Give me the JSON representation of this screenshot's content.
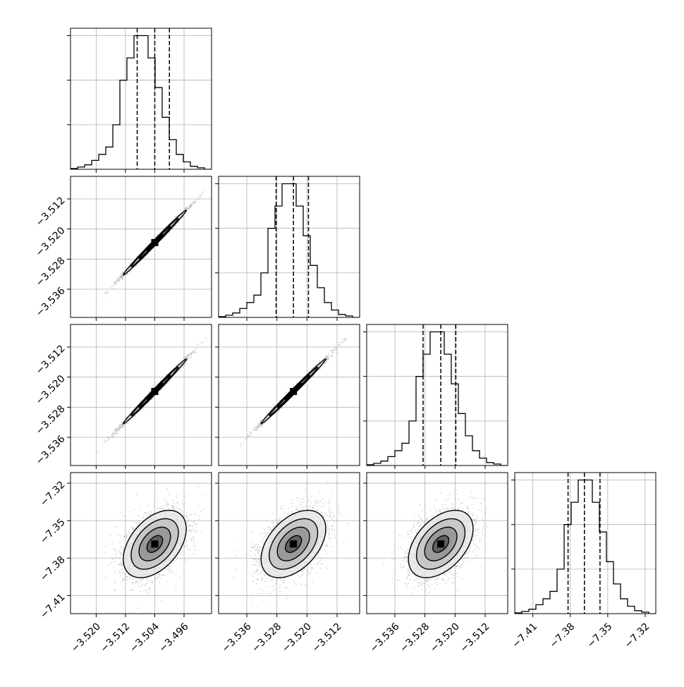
{
  "chart_data": {
    "type": "corner",
    "n_params": 4,
    "params": [
      {
        "range": [
          -3.527,
          -3.4885
        ],
        "ticks": [
          -3.52,
          -3.512,
          -3.504,
          -3.496
        ],
        "tick_labels": [
          "−3.520",
          "−3.512",
          "−3.504",
          "−3.496"
        ],
        "quantiles": [
          -3.5088,
          -3.504,
          -3.5
        ],
        "hist": {
          "bins": 20,
          "counts": [
            0.5,
            1.5,
            3,
            6,
            10,
            15,
            30,
            60,
            75,
            90,
            90,
            75,
            55,
            35,
            20,
            10,
            5,
            2,
            1,
            0
          ],
          "ylim": [
            0,
            95
          ],
          "grid_counts": [
            30,
            60,
            90
          ]
        }
      },
      {
        "range": [
          -3.5435,
          -3.506
        ],
        "ticks": [
          -3.536,
          -3.528,
          -3.52,
          -3.512
        ],
        "tick_labels": [
          "−3.536",
          "−3.528",
          "−3.520",
          "−3.512"
        ],
        "quantiles": [
          -3.5282,
          -3.5236,
          -3.5196
        ],
        "hist": {
          "bins": 20,
          "counts": [
            0.5,
            1.5,
            3,
            6,
            10,
            15,
            30,
            60,
            75,
            90,
            90,
            75,
            55,
            35,
            20,
            10,
            5,
            2,
            1,
            0
          ],
          "ylim": [
            0,
            95
          ],
          "grid_counts": [
            30,
            60,
            90
          ]
        }
      },
      {
        "range": [
          -3.5435,
          -3.506
        ],
        "ticks": [
          -3.536,
          -3.528,
          -3.52,
          -3.512
        ],
        "tick_labels": [
          "−3.536",
          "−3.528",
          "−3.520",
          "−3.512"
        ],
        "quantiles": [
          -3.5285,
          -3.5238,
          -3.5198
        ],
        "hist": {
          "bins": 20,
          "counts": [
            0.5,
            1.5,
            3,
            6,
            10,
            15,
            30,
            60,
            75,
            90,
            90,
            75,
            55,
            35,
            20,
            10,
            5,
            2,
            1,
            0
          ],
          "ylim": [
            0,
            95
          ],
          "grid_counts": [
            30,
            60,
            90
          ]
        }
      },
      {
        "range": [
          -7.4245,
          -7.3115
        ],
        "ticks": [
          -7.41,
          -7.38,
          -7.35,
          -7.32
        ],
        "tick_labels": [
          "−7.41",
          "−7.38",
          "−7.35",
          "−7.32"
        ],
        "quantiles": [
          -7.3818,
          -7.3687,
          -7.3562
        ],
        "hist": {
          "bins": 20,
          "counts": [
            0.5,
            1.5,
            3,
            6,
            10,
            15,
            30,
            60,
            75,
            90,
            90,
            75,
            55,
            35,
            20,
            10,
            5,
            2,
            1,
            0
          ],
          "ylim": [
            0,
            95
          ],
          "grid_counts": [
            30,
            60,
            90
          ]
        }
      }
    ],
    "pairs": [
      {
        "x": 0,
        "y": 1,
        "mean": [
          -3.504,
          -3.5236
        ],
        "sd": [
          0.0043,
          0.0043
        ],
        "corr": 0.995
      },
      {
        "x": 0,
        "y": 2,
        "mean": [
          -3.504,
          -3.5238
        ],
        "sd": [
          0.0043,
          0.0043
        ],
        "corr": 0.995
      },
      {
        "x": 1,
        "y": 2,
        "mean": [
          -3.5236,
          -3.5238
        ],
        "sd": [
          0.0043,
          0.0043
        ],
        "corr": 0.995
      },
      {
        "x": 0,
        "y": 3,
        "mean": [
          -3.504,
          -7.3687
        ],
        "sd": [
          0.0043,
          0.0135
        ],
        "corr": 0.45
      },
      {
        "x": 1,
        "y": 3,
        "mean": [
          -3.5236,
          -7.3687
        ],
        "sd": [
          0.0043,
          0.0135
        ],
        "corr": 0.45
      },
      {
        "x": 2,
        "y": 3,
        "mean": [
          -3.5238,
          -7.3687
        ],
        "sd": [
          0.0043,
          0.0135
        ],
        "corr": 0.45
      }
    ],
    "contour_levels_sigma": [
      0.5,
      1.0,
      1.5,
      2.0
    ],
    "grid": true,
    "quantile_line_style": "dashed",
    "colors": {
      "hist": "#000000",
      "contour": "#000000",
      "points": "#b3b3b3",
      "grid": "#b0b0b0",
      "frame": "#000000"
    }
  }
}
